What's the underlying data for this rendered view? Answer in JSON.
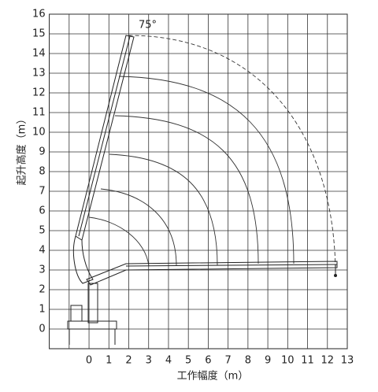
{
  "chart_data": {
    "type": "line",
    "xlabel": "工作幅度（m）",
    "ylabel": "起升高度（m）",
    "annotation": "75°",
    "xlim": [
      -2,
      13
    ],
    "ylim": [
      -1,
      16
    ],
    "xticks": [
      0,
      1,
      2,
      3,
      4,
      5,
      6,
      7,
      8,
      9,
      10,
      11,
      12,
      13
    ],
    "yticks": [
      0,
      1,
      2,
      3,
      4,
      5,
      6,
      7,
      8,
      9,
      10,
      11,
      12,
      13,
      14,
      15,
      16
    ],
    "grid": true
  }
}
